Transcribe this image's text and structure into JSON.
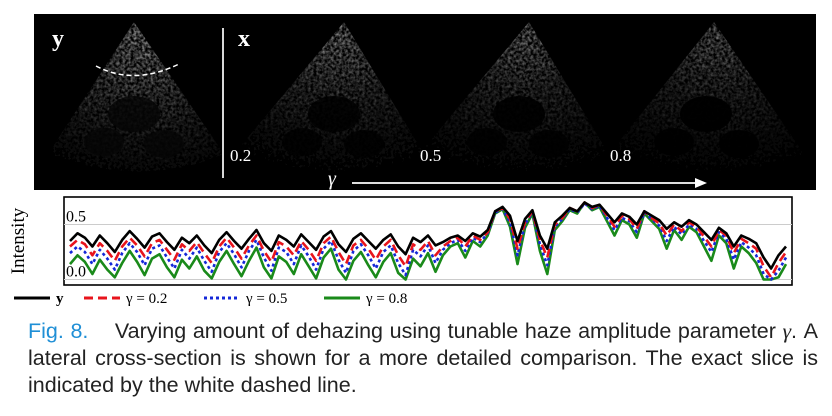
{
  "figure": {
    "panels": [
      {
        "label": "y",
        "gamma": ""
      },
      {
        "label": "x",
        "gamma": "0.2"
      },
      {
        "label": "",
        "gamma": "0.5"
      },
      {
        "label": "",
        "gamma": "0.8"
      }
    ],
    "gamma_axis_label": "γ"
  },
  "chart_data": {
    "type": "line",
    "ylabel": "Intensity",
    "yticks": [
      "0.0",
      "0.5"
    ],
    "ylim": [
      -0.05,
      0.75
    ],
    "grid": true,
    "legend_position": "bottom",
    "series": [
      {
        "name": "y",
        "color": "#000000",
        "style": "solid",
        "values": [
          0.35,
          0.42,
          0.38,
          0.3,
          0.4,
          0.33,
          0.25,
          0.36,
          0.44,
          0.37,
          0.29,
          0.39,
          0.42,
          0.34,
          0.27,
          0.38,
          0.33,
          0.4,
          0.31,
          0.24,
          0.36,
          0.43,
          0.35,
          0.28,
          0.37,
          0.45,
          0.33,
          0.26,
          0.4,
          0.36,
          0.3,
          0.41,
          0.34,
          0.27,
          0.39,
          0.44,
          0.32,
          0.25,
          0.37,
          0.42,
          0.35,
          0.28,
          0.36,
          0.41,
          0.3,
          0.23,
          0.38,
          0.34,
          0.4,
          0.31,
          0.34,
          0.38,
          0.4,
          0.35,
          0.42,
          0.39,
          0.45,
          0.62,
          0.66,
          0.58,
          0.35,
          0.55,
          0.63,
          0.4,
          0.28,
          0.52,
          0.58,
          0.65,
          0.62,
          0.7,
          0.66,
          0.68,
          0.6,
          0.52,
          0.6,
          0.57,
          0.5,
          0.62,
          0.58,
          0.54,
          0.46,
          0.52,
          0.48,
          0.54,
          0.5,
          0.43,
          0.36,
          0.47,
          0.42,
          0.3,
          0.4,
          0.37,
          0.33,
          0.2,
          0.1,
          0.22,
          0.3
        ]
      },
      {
        "name": "γ = 0.2",
        "color": "#e8141c",
        "style": "dashed",
        "values": [
          0.3,
          0.36,
          0.32,
          0.22,
          0.33,
          0.26,
          0.17,
          0.3,
          0.38,
          0.31,
          0.21,
          0.33,
          0.36,
          0.27,
          0.18,
          0.32,
          0.26,
          0.34,
          0.24,
          0.15,
          0.3,
          0.38,
          0.29,
          0.19,
          0.31,
          0.4,
          0.26,
          0.16,
          0.34,
          0.3,
          0.22,
          0.35,
          0.27,
          0.17,
          0.33,
          0.39,
          0.25,
          0.14,
          0.31,
          0.36,
          0.28,
          0.18,
          0.3,
          0.36,
          0.22,
          0.12,
          0.32,
          0.27,
          0.35,
          0.22,
          0.3,
          0.35,
          0.38,
          0.3,
          0.4,
          0.36,
          0.43,
          0.62,
          0.65,
          0.55,
          0.28,
          0.52,
          0.62,
          0.36,
          0.2,
          0.5,
          0.56,
          0.65,
          0.62,
          0.7,
          0.65,
          0.68,
          0.58,
          0.48,
          0.58,
          0.55,
          0.46,
          0.62,
          0.56,
          0.51,
          0.4,
          0.5,
          0.44,
          0.52,
          0.48,
          0.39,
          0.3,
          0.45,
          0.4,
          0.24,
          0.37,
          0.33,
          0.28,
          0.12,
          0.02,
          0.15,
          0.25
        ]
      },
      {
        "name": "γ = 0.5",
        "color": "#1428d8",
        "style": "dotted",
        "values": [
          0.24,
          0.3,
          0.25,
          0.14,
          0.27,
          0.19,
          0.09,
          0.24,
          0.33,
          0.25,
          0.13,
          0.28,
          0.31,
          0.2,
          0.1,
          0.27,
          0.19,
          0.29,
          0.17,
          0.07,
          0.25,
          0.33,
          0.23,
          0.11,
          0.26,
          0.36,
          0.2,
          0.08,
          0.29,
          0.25,
          0.14,
          0.31,
          0.21,
          0.09,
          0.28,
          0.35,
          0.18,
          0.06,
          0.26,
          0.32,
          0.22,
          0.1,
          0.25,
          0.31,
          0.15,
          0.04,
          0.27,
          0.21,
          0.31,
          0.15,
          0.27,
          0.33,
          0.36,
          0.26,
          0.38,
          0.34,
          0.42,
          0.61,
          0.64,
          0.52,
          0.22,
          0.5,
          0.61,
          0.32,
          0.13,
          0.48,
          0.55,
          0.64,
          0.61,
          0.69,
          0.64,
          0.67,
          0.56,
          0.45,
          0.56,
          0.53,
          0.43,
          0.61,
          0.55,
          0.49,
          0.35,
          0.48,
          0.41,
          0.5,
          0.46,
          0.35,
          0.25,
          0.43,
          0.37,
          0.18,
          0.34,
          0.29,
          0.22,
          0.05,
          0.0,
          0.08,
          0.2
        ]
      },
      {
        "name": "γ = 0.8",
        "color": "#1a8a1a",
        "style": "solid",
        "values": [
          0.14,
          0.22,
          0.16,
          0.05,
          0.18,
          0.09,
          0.02,
          0.15,
          0.26,
          0.16,
          0.04,
          0.19,
          0.23,
          0.11,
          0.02,
          0.18,
          0.1,
          0.21,
          0.08,
          0.01,
          0.16,
          0.26,
          0.14,
          0.03,
          0.17,
          0.29,
          0.11,
          0.01,
          0.21,
          0.16,
          0.05,
          0.23,
          0.12,
          0.01,
          0.2,
          0.28,
          0.09,
          0.0,
          0.17,
          0.25,
          0.13,
          0.02,
          0.16,
          0.24,
          0.06,
          0.0,
          0.19,
          0.12,
          0.24,
          0.07,
          0.22,
          0.3,
          0.33,
          0.2,
          0.35,
          0.3,
          0.4,
          0.6,
          0.64,
          0.48,
          0.14,
          0.47,
          0.6,
          0.26,
          0.05,
          0.45,
          0.53,
          0.63,
          0.6,
          0.7,
          0.63,
          0.66,
          0.53,
          0.4,
          0.54,
          0.5,
          0.38,
          0.6,
          0.53,
          0.46,
          0.28,
          0.45,
          0.36,
          0.48,
          0.43,
          0.3,
          0.17,
          0.4,
          0.33,
          0.1,
          0.3,
          0.24,
          0.15,
          0.0,
          0.0,
          0.02,
          0.14
        ]
      }
    ]
  },
  "caption": {
    "fig_ref": "Fig. 8.",
    "text_before_gamma": "Varying amount of dehazing using tunable haze amplitude parameter",
    "gamma_symbol": "γ",
    "text_after_gamma": ". A lateral cross-section is shown for a more detailed comparison. The exact slice is indicated by the white dashed line."
  }
}
